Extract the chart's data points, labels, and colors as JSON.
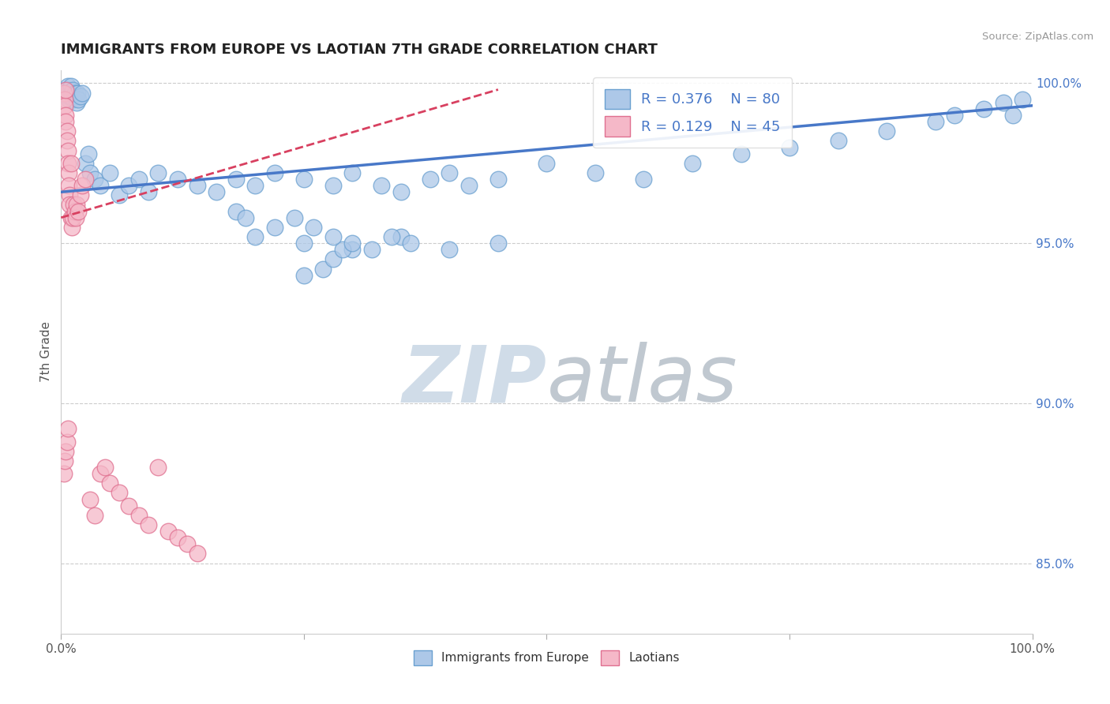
{
  "title": "IMMIGRANTS FROM EUROPE VS LAOTIAN 7TH GRADE CORRELATION CHART",
  "source": "Source: ZipAtlas.com",
  "ylabel": "7th Grade",
  "blue_R": 0.376,
  "blue_N": 80,
  "pink_R": 0.129,
  "pink_N": 45,
  "blue_color": "#adc8e8",
  "blue_edge_color": "#6aa0d0",
  "pink_color": "#f5b8c8",
  "pink_edge_color": "#e07090",
  "blue_line_color": "#4878c8",
  "pink_line_color": "#d84060",
  "tick_color": "#4878c8",
  "title_color": "#222222",
  "source_color": "#999999",
  "watermark_color": "#d0dce8",
  "blue_x": [
    0.005,
    0.005,
    0.006,
    0.007,
    0.007,
    0.008,
    0.008,
    0.009,
    0.01,
    0.01,
    0.011,
    0.012,
    0.013,
    0.014,
    0.015,
    0.016,
    0.017,
    0.018,
    0.02,
    0.022,
    0.025,
    0.028,
    0.03,
    0.035,
    0.04,
    0.05,
    0.06,
    0.07,
    0.08,
    0.09,
    0.1,
    0.12,
    0.14,
    0.16,
    0.18,
    0.2,
    0.22,
    0.25,
    0.28,
    0.3,
    0.33,
    0.35,
    0.38,
    0.4,
    0.42,
    0.45,
    0.5,
    0.55,
    0.6,
    0.65,
    0.7,
    0.75,
    0.8,
    0.85,
    0.9,
    0.92,
    0.95,
    0.97,
    0.98,
    0.99,
    0.2,
    0.25,
    0.3,
    0.35,
    0.4,
    0.45,
    0.25,
    0.27,
    0.28,
    0.29,
    0.18,
    0.19,
    0.22,
    0.24,
    0.26,
    0.28,
    0.3,
    0.32,
    0.34,
    0.36
  ],
  "blue_y": [
    0.997,
    0.998,
    0.996,
    0.999,
    0.997,
    0.995,
    0.998,
    0.996,
    0.997,
    0.999,
    0.996,
    0.998,
    0.995,
    0.997,
    0.996,
    0.994,
    0.997,
    0.995,
    0.996,
    0.997,
    0.975,
    0.978,
    0.972,
    0.97,
    0.968,
    0.972,
    0.965,
    0.968,
    0.97,
    0.966,
    0.972,
    0.97,
    0.968,
    0.966,
    0.97,
    0.968,
    0.972,
    0.97,
    0.968,
    0.972,
    0.968,
    0.966,
    0.97,
    0.972,
    0.968,
    0.97,
    0.975,
    0.972,
    0.97,
    0.975,
    0.978,
    0.98,
    0.982,
    0.985,
    0.988,
    0.99,
    0.992,
    0.994,
    0.99,
    0.995,
    0.952,
    0.95,
    0.948,
    0.952,
    0.948,
    0.95,
    0.94,
    0.942,
    0.945,
    0.948,
    0.96,
    0.958,
    0.955,
    0.958,
    0.955,
    0.952,
    0.95,
    0.948,
    0.952,
    0.95
  ],
  "pink_x": [
    0.003,
    0.004,
    0.004,
    0.005,
    0.005,
    0.005,
    0.006,
    0.006,
    0.007,
    0.007,
    0.008,
    0.008,
    0.009,
    0.009,
    0.01,
    0.01,
    0.011,
    0.012,
    0.013,
    0.014,
    0.015,
    0.016,
    0.018,
    0.02,
    0.022,
    0.025,
    0.03,
    0.035,
    0.04,
    0.045,
    0.05,
    0.06,
    0.07,
    0.08,
    0.09,
    0.1,
    0.11,
    0.12,
    0.13,
    0.14,
    0.003,
    0.004,
    0.005,
    0.006,
    0.007
  ],
  "pink_y": [
    0.997,
    0.995,
    0.993,
    0.99,
    0.988,
    0.998,
    0.985,
    0.982,
    0.979,
    0.975,
    0.972,
    0.968,
    0.965,
    0.962,
    0.975,
    0.958,
    0.955,
    0.958,
    0.962,
    0.96,
    0.958,
    0.962,
    0.96,
    0.965,
    0.968,
    0.97,
    0.87,
    0.865,
    0.878,
    0.88,
    0.875,
    0.872,
    0.868,
    0.865,
    0.862,
    0.88,
    0.86,
    0.858,
    0.856,
    0.853,
    0.878,
    0.882,
    0.885,
    0.888,
    0.892
  ],
  "xlim": [
    0.0,
    1.0
  ],
  "ylim": [
    0.828,
    1.004
  ],
  "yticks": [
    1.0,
    0.95,
    0.9,
    0.85
  ],
  "ytick_labels": [
    "100.0%",
    "95.0%",
    "90.0%",
    "85.0%"
  ]
}
